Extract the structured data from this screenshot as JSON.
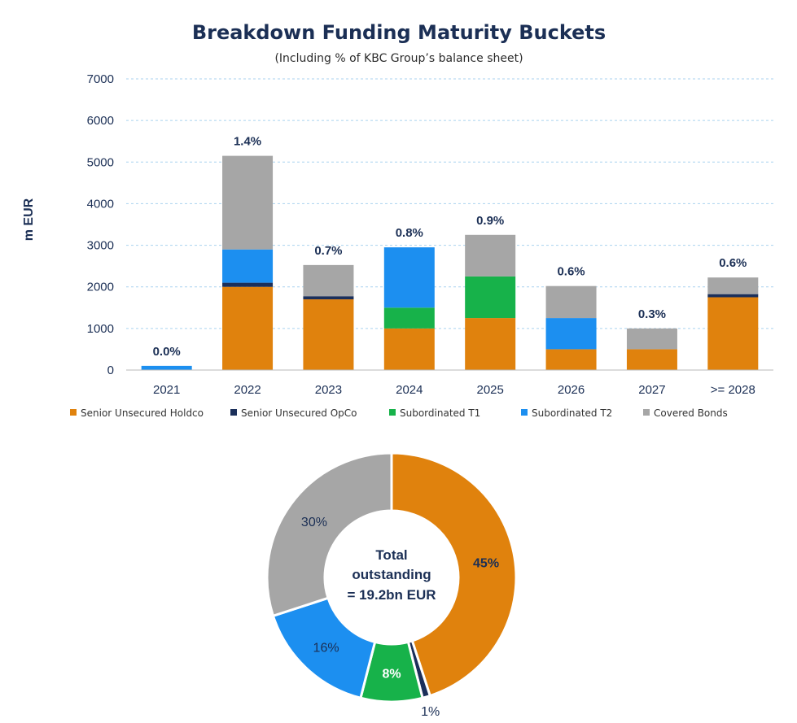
{
  "chart_data": [
    {
      "type": "bar",
      "stacked": true,
      "title": "Breakdown Funding Maturity Buckets",
      "subtitle": "(Including % of KBC Group’s balance sheet)",
      "ylabel": "m EUR",
      "xlabel": "",
      "ylim": [
        0,
        7000
      ],
      "yticks": [
        0,
        1000,
        2000,
        3000,
        4000,
        5000,
        6000,
        7000
      ],
      "grid": true,
      "categories": [
        "2021",
        "2022",
        "2023",
        "2024",
        "2025",
        "2026",
        "2027",
        ">= 2028"
      ],
      "series": [
        {
          "name": "Senior Unsecured Holdco",
          "color": "#e0820d",
          "values": [
            0,
            2000,
            1700,
            1000,
            1250,
            500,
            500,
            1750
          ]
        },
        {
          "name": "Senior Unsecured OpCo",
          "color": "#1b2f5a",
          "values": [
            0,
            100,
            75,
            0,
            0,
            0,
            0,
            75
          ]
        },
        {
          "name": "Subordinated T1",
          "color": "#17b24a",
          "values": [
            0,
            0,
            0,
            500,
            1000,
            0,
            0,
            0
          ]
        },
        {
          "name": "Subordinated T2",
          "color": "#1c8ff0",
          "values": [
            100,
            800,
            0,
            1450,
            0,
            750,
            0,
            0
          ]
        },
        {
          "name": "Covered Bonds",
          "color": "#a6a6a6",
          "values": [
            0,
            2250,
            750,
            0,
            1000,
            770,
            500,
            400
          ]
        }
      ],
      "bar_labels": [
        "0.0%",
        "1.4%",
        "0.7%",
        "0.8%",
        "0.9%",
        "0.6%",
        "0.3%",
        "0.6%"
      ],
      "legend_position": "bottom"
    },
    {
      "type": "pie",
      "donut": true,
      "center_text": [
        "Total",
        "outstanding",
        "= 19.2bn EUR"
      ],
      "slices": [
        {
          "name": "Senior Unsecured Holdco",
          "value": 45,
          "label": "45%",
          "color": "#e0820d",
          "label_color": "#1b2f55",
          "label_bold": true
        },
        {
          "name": "Senior Unsecured OpCo",
          "value": 1,
          "label": "1%",
          "color": "#1b2f5a",
          "label_color": "#1b2f55",
          "label_bold": false
        },
        {
          "name": "Subordinated T1",
          "value": 8,
          "label": "8%",
          "color": "#17b24a",
          "label_color": "#ffffff",
          "label_bold": true
        },
        {
          "name": "Subordinated T2",
          "value": 16,
          "label": "16%",
          "color": "#1c8ff0",
          "label_color": "#1b2f55",
          "label_bold": false
        },
        {
          "name": "Covered Bonds",
          "value": 30,
          "label": "30%",
          "color": "#a6a6a6",
          "label_color": "#1b2f55",
          "label_bold": false
        }
      ]
    }
  ]
}
